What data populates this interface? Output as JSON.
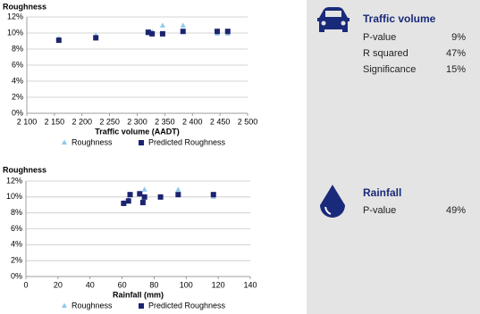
{
  "chart_data": [
    {
      "type": "scatter",
      "y_label": "Roughness",
      "x_label": "Traffic volume (AADT)",
      "x": [
        2158,
        2225,
        2320,
        2327,
        2346,
        2383,
        2445,
        2464
      ],
      "series": [
        {
          "name": "Roughness",
          "color": "#8ec8ec",
          "marker": "triangle",
          "values": [
            9.3,
            9.7,
            9.9,
            10.1,
            10.9,
            10.9,
            9.9,
            9.9
          ]
        },
        {
          "name": "Predicted Roughness",
          "color": "#1c2470",
          "marker": "square",
          "values": [
            9.1,
            9.4,
            10.1,
            9.9,
            9.9,
            10.2,
            10.2,
            10.2
          ]
        }
      ],
      "xlim": [
        2100,
        2500
      ],
      "xticks": [
        {
          "value": 2100,
          "label": "2 100"
        },
        {
          "value": 2150,
          "label": "2 150"
        },
        {
          "value": 2200,
          "label": "2 200"
        },
        {
          "value": 2250,
          "label": "2 250"
        },
        {
          "value": 2300,
          "label": "2 300"
        },
        {
          "value": 2350,
          "label": "2 350"
        },
        {
          "value": 2400,
          "label": "2 400"
        },
        {
          "value": 2450,
          "label": "2 450"
        },
        {
          "value": 2500,
          "label": "2 500"
        }
      ],
      "ylim": [
        0,
        12
      ],
      "yticks": [
        {
          "value": 0,
          "label": "0%"
        },
        {
          "value": 2,
          "label": "2%"
        },
        {
          "value": 4,
          "label": "4%"
        },
        {
          "value": 6,
          "label": "6%"
        },
        {
          "value": 8,
          "label": "8%"
        },
        {
          "value": 10,
          "label": "10%"
        },
        {
          "value": 12,
          "label": "12%"
        }
      ],
      "grid": true,
      "legend": "bottom"
    },
    {
      "type": "scatter",
      "y_label": "Roughness",
      "x_label": "Rainfall (mm)",
      "x": [
        61,
        64,
        65,
        71,
        73,
        74,
        84,
        95,
        117
      ],
      "series": [
        {
          "name": "Roughness",
          "color": "#8ec8ec",
          "marker": "triangle",
          "values": [
            9.3,
            9.7,
            10.3,
            10.5,
            9.7,
            10.9,
            10.0,
            10.9,
            10.0
          ]
        },
        {
          "name": "Predicted Roughness",
          "color": "#1c2470",
          "marker": "square",
          "values": [
            9.2,
            9.5,
            10.3,
            10.4,
            9.3,
            10.0,
            10.0,
            10.3,
            10.3
          ]
        }
      ],
      "xlim": [
        0,
        140
      ],
      "xticks": [
        0,
        20,
        40,
        60,
        80,
        100,
        120,
        140
      ],
      "ylim": [
        0,
        12
      ],
      "yticks": [
        {
          "value": 0,
          "label": "0%"
        },
        {
          "value": 2,
          "label": "2%"
        },
        {
          "value": 4,
          "label": "4%"
        },
        {
          "value": 6,
          "label": "6%"
        },
        {
          "value": 8,
          "label": "8%"
        },
        {
          "value": 10,
          "label": "10%"
        },
        {
          "value": 12,
          "label": "12%"
        }
      ],
      "grid": true,
      "legend": "bottom"
    }
  ],
  "panel": {
    "traffic": {
      "title": "Traffic volume",
      "rows": [
        [
          "P-value",
          "9%"
        ],
        [
          "R squared",
          "47%"
        ],
        [
          "Significance",
          "15%"
        ]
      ]
    },
    "rainfall": {
      "title": "Rainfall",
      "rows": [
        [
          "P-value",
          "49%"
        ]
      ]
    }
  }
}
